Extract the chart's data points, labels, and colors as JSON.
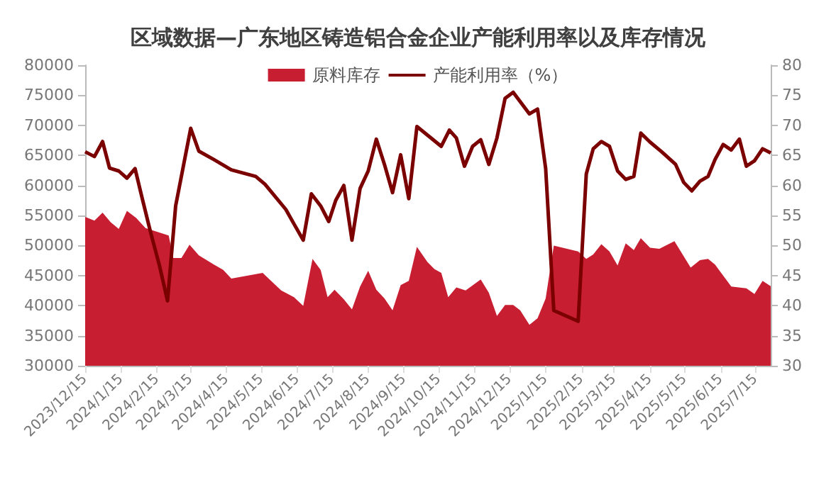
{
  "chart_data": {
    "type": "area",
    "title": "区域数据—广东地区铸造铝合金企业产能利用率以及库存情况",
    "legend": "top",
    "xlim": [
      "2023-12-15",
      "2025-07-28"
    ],
    "xticks": [
      {
        "value": "2023-12-15",
        "label": "2023/12/15"
      },
      {
        "value": "2024-01-15",
        "label": "2024/1/15"
      },
      {
        "value": "2024-02-15",
        "label": "2024/2/15"
      },
      {
        "value": "2024-03-15",
        "label": "2024/3/15"
      },
      {
        "value": "2024-04-15",
        "label": "2024/4/15"
      },
      {
        "value": "2024-05-15",
        "label": "2024/5/15"
      },
      {
        "value": "2024-06-15",
        "label": "2024/6/15"
      },
      {
        "value": "2024-07-15",
        "label": "2024/7/15"
      },
      {
        "value": "2024-08-15",
        "label": "2024/8/15"
      },
      {
        "value": "2024-09-15",
        "label": "2024/9/15"
      },
      {
        "value": "2024-10-15",
        "label": "2024/10/15"
      },
      {
        "value": "2024-11-15",
        "label": "2024/11/15"
      },
      {
        "value": "2024-12-15",
        "label": "2024/12/15"
      },
      {
        "value": "2025-01-15",
        "label": "2025/1/15"
      },
      {
        "value": "2025-02-15",
        "label": "2025/2/15"
      },
      {
        "value": "2025-03-15",
        "label": "2025/3/15"
      },
      {
        "value": "2025-04-15",
        "label": "2025/4/15"
      },
      {
        "value": "2025-05-15",
        "label": "2025/5/15"
      },
      {
        "value": "2025-06-15",
        "label": "2025/6/15"
      },
      {
        "value": "2025-07-15",
        "label": "2025/7/15"
      }
    ],
    "ylim": [
      30000,
      80000
    ],
    "yticks": [
      30000,
      35000,
      40000,
      45000,
      50000,
      55000,
      60000,
      65000,
      70000,
      75000,
      80000
    ],
    "y2lim": [
      30,
      80
    ],
    "y2ticks": [
      30,
      35,
      40,
      45,
      50,
      55,
      60,
      65,
      70,
      75,
      80
    ],
    "series": [
      {
        "name": "原料库存",
        "color": "#c81e32",
        "x": [
          "2023-12-15",
          "2023-12-23",
          "2023-12-30",
          "2024-01-06",
          "2024-01-13",
          "2024-01-20",
          "2024-01-28",
          "2024-02-05",
          "2024-02-25",
          "2024-02-29",
          "2024-03-07",
          "2024-03-14",
          "2024-03-22",
          "2024-04-04",
          "2024-04-12",
          "2024-04-19",
          "2024-05-16",
          "2024-06-01",
          "2024-06-12",
          "2024-06-20",
          "2024-06-28",
          "2024-07-05",
          "2024-07-11",
          "2024-07-17",
          "2024-07-25",
          "2024-08-01",
          "2024-08-08",
          "2024-08-15",
          "2024-08-22",
          "2024-08-29",
          "2024-09-05",
          "2024-09-12",
          "2024-09-19",
          "2024-09-26",
          "2024-10-05",
          "2024-10-11",
          "2024-10-17",
          "2024-10-23",
          "2024-10-30",
          "2024-11-07",
          "2024-11-20",
          "2024-11-27",
          "2024-12-04",
          "2024-12-11",
          "2024-12-18",
          "2024-12-24",
          "2025-01-01",
          "2025-01-08",
          "2025-01-15",
          "2025-01-22",
          "2025-02-12",
          "2025-02-19",
          "2025-02-25",
          "2025-03-04",
          "2025-03-11",
          "2025-03-18",
          "2025-03-25",
          "2025-04-01",
          "2025-04-07",
          "2025-04-15",
          "2025-04-23",
          "2025-05-06",
          "2025-05-20",
          "2025-05-28",
          "2025-06-04",
          "2025-06-10",
          "2025-06-24",
          "2025-07-07",
          "2025-07-14",
          "2025-07-21",
          "2025-07-28"
        ],
        "values": [
          54750,
          54150,
          55470,
          53870,
          52770,
          55770,
          54600,
          52900,
          51670,
          47930,
          47930,
          50130,
          48380,
          46840,
          45960,
          44500,
          45450,
          42520,
          41420,
          39960,
          47790,
          45960,
          41420,
          42660,
          41050,
          39370,
          43180,
          45810,
          42660,
          41200,
          39220,
          43400,
          44130,
          49770,
          47280,
          46100,
          45450,
          41420,
          43030,
          42520,
          44350,
          42150,
          38270,
          40100,
          40100,
          39220,
          36810,
          37900,
          41200,
          49990,
          49030,
          47790,
          48520,
          50210,
          49030,
          46690,
          50360,
          49260,
          51240,
          49620,
          49470,
          50720,
          46320,
          47570,
          47790,
          46840,
          43180,
          42880,
          41930,
          44130,
          43250
        ]
      },
      {
        "name": "产能利用率（%）",
        "type": "line",
        "axis": "y2",
        "color": "#7b0000",
        "x": [
          "2023-12-15",
          "2023-12-23",
          "2023-12-30",
          "2024-01-05",
          "2024-01-13",
          "2024-01-20",
          "2024-01-27",
          "2024-02-02",
          "2024-02-09",
          "2024-02-17",
          "2024-02-24",
          "2024-03-02",
          "2024-03-15",
          "2024-03-22",
          "2024-04-04",
          "2024-04-19",
          "2024-05-10",
          "2024-05-18",
          "2024-06-05",
          "2024-06-12",
          "2024-06-20",
          "2024-06-27",
          "2024-07-05",
          "2024-07-12",
          "2024-07-18",
          "2024-07-25",
          "2024-08-01",
          "2024-08-08",
          "2024-08-15",
          "2024-08-22",
          "2024-08-29",
          "2024-09-05",
          "2024-09-12",
          "2024-09-19",
          "2024-09-26",
          "2024-10-17",
          "2024-10-24",
          "2024-10-30",
          "2024-11-06",
          "2024-11-13",
          "2024-11-20",
          "2024-11-27",
          "2024-12-04",
          "2024-12-11",
          "2024-12-18",
          "2025-01-01",
          "2025-01-08",
          "2025-01-15",
          "2025-01-22",
          "2025-02-12",
          "2025-02-19",
          "2025-02-25",
          "2025-03-04",
          "2025-03-11",
          "2025-03-18",
          "2025-03-25",
          "2025-04-01",
          "2025-04-07",
          "2025-04-15",
          "2025-04-25",
          "2025-05-07",
          "2025-05-14",
          "2025-05-21",
          "2025-05-28",
          "2025-06-04",
          "2025-06-10",
          "2025-06-17",
          "2025-06-24",
          "2025-07-01",
          "2025-07-07",
          "2025-07-14",
          "2025-07-21",
          "2025-07-28"
        ],
        "values": [
          65.6,
          64.8,
          67.3,
          62.9,
          62.4,
          61.2,
          62.8,
          58.0,
          52.5,
          46.7,
          40.8,
          56.6,
          69.5,
          65.7,
          64.3,
          62.6,
          61.5,
          60.2,
          56.0,
          53.6,
          50.9,
          58.6,
          56.6,
          54.0,
          57.5,
          60.0,
          50.9,
          59.5,
          62.4,
          67.7,
          63.5,
          58.8,
          65.1,
          57.8,
          69.8,
          66.5,
          69.2,
          67.9,
          63.2,
          66.5,
          67.6,
          63.5,
          67.9,
          74.5,
          75.5,
          71.9,
          72.7,
          62.8,
          39.2,
          37.4,
          61.9,
          66.1,
          67.3,
          66.5,
          62.4,
          61.0,
          61.5,
          68.7,
          67.2,
          65.6,
          63.5,
          60.5,
          59.1,
          60.7,
          61.5,
          64.3,
          66.8,
          65.9,
          67.7,
          63.2,
          64.1,
          66.1,
          65.4
        ]
      }
    ]
  }
}
